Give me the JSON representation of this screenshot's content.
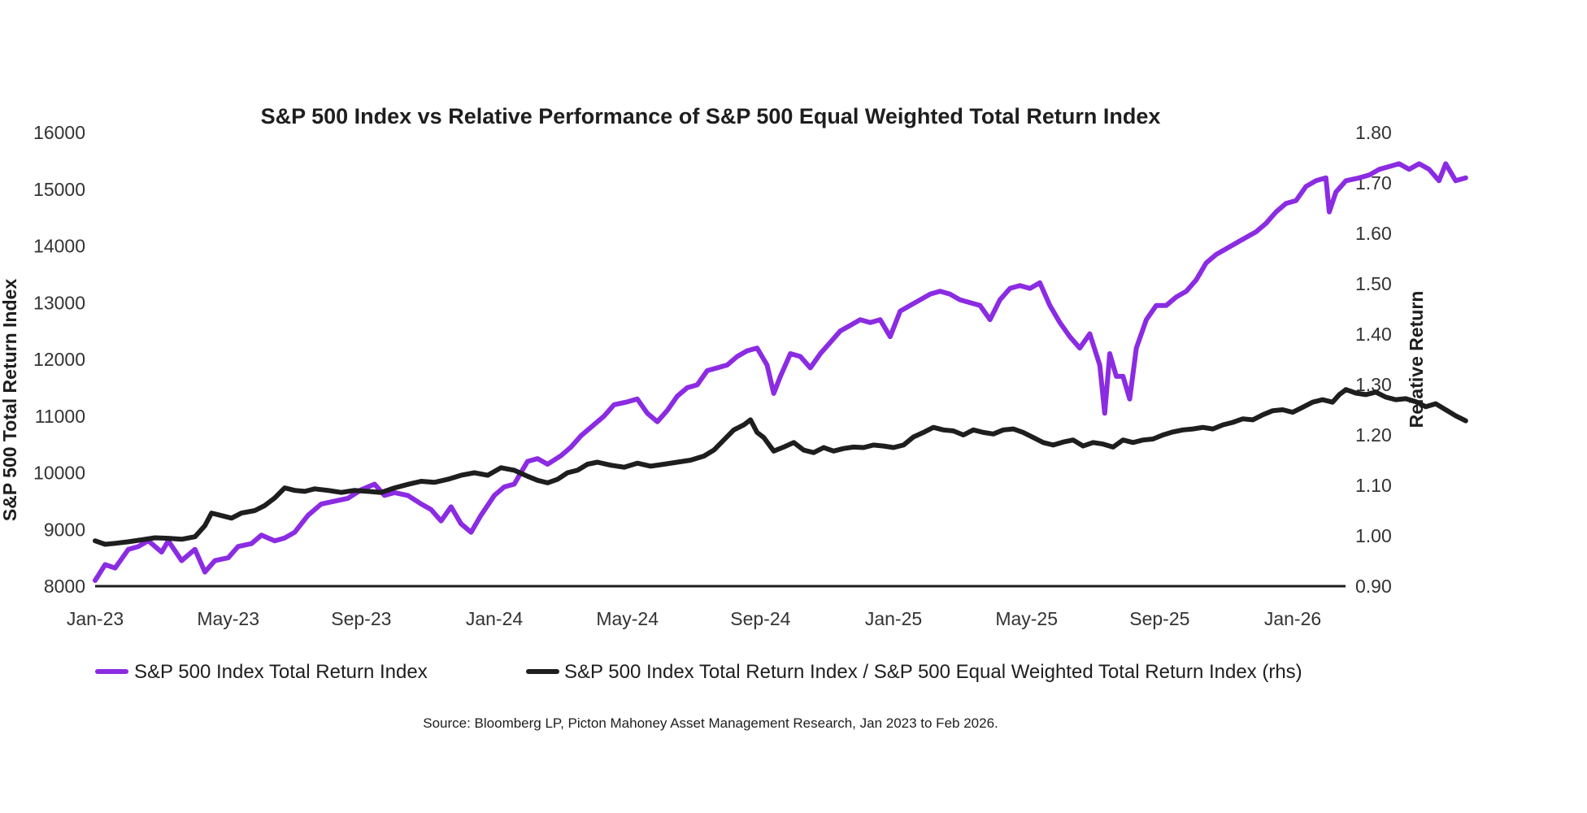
{
  "chart_data": {
    "type": "line",
    "title": "S&P 500 Index vs Relative Performance of S&P 500 Equal Weighted Total Return Index",
    "ylabel": "S&P 500 Total Return Index",
    "y2label": "Relative Return",
    "ylim": [
      8000,
      16000
    ],
    "y2lim": [
      0.9,
      1.8
    ],
    "yticks": [
      "8000",
      "9000",
      "10000",
      "11000",
      "12000",
      "13000",
      "14000",
      "15000",
      "16000"
    ],
    "y2ticks": [
      "0.90",
      "1.00",
      "1.10",
      "1.20",
      "1.30",
      "1.40",
      "1.50",
      "1.60",
      "1.70",
      "1.80"
    ],
    "xticks": [
      "Jan-23",
      "May-23",
      "Sep-23",
      "Jan-24",
      "May-24",
      "Sep-24",
      "Jan-25",
      "May-25",
      "Sep-25",
      "Jan-26"
    ],
    "xrange_months": [
      0,
      37.5
    ],
    "grid": false,
    "legend_position": "bottom",
    "source": "Source: Bloomberg LP, Picton Mahoney Asset Management Research, Jan 2023 to Feb 2026.",
    "series": [
      {
        "name": "S&P 500 Index Total Return Index",
        "axis": "left",
        "color": "#8b2be2",
        "points": [
          [
            0,
            8100
          ],
          [
            0.3,
            8380
          ],
          [
            0.6,
            8320
          ],
          [
            1.0,
            8650
          ],
          [
            1.3,
            8700
          ],
          [
            1.6,
            8800
          ],
          [
            2.0,
            8600
          ],
          [
            2.2,
            8800
          ],
          [
            2.6,
            8450
          ],
          [
            3.0,
            8650
          ],
          [
            3.3,
            8250
          ],
          [
            3.6,
            8450
          ],
          [
            4.0,
            8500
          ],
          [
            4.3,
            8700
          ],
          [
            4.7,
            8750
          ],
          [
            5.0,
            8900
          ],
          [
            5.4,
            8800
          ],
          [
            5.7,
            8850
          ],
          [
            6.0,
            8950
          ],
          [
            6.4,
            9250
          ],
          [
            6.8,
            9450
          ],
          [
            7.2,
            9500
          ],
          [
            7.6,
            9550
          ],
          [
            8.0,
            9700
          ],
          [
            8.4,
            9800
          ],
          [
            8.7,
            9600
          ],
          [
            9.0,
            9650
          ],
          [
            9.4,
            9600
          ],
          [
            9.8,
            9450
          ],
          [
            10.1,
            9350
          ],
          [
            10.4,
            9150
          ],
          [
            10.7,
            9400
          ],
          [
            11.0,
            9100
          ],
          [
            11.3,
            8950
          ],
          [
            11.6,
            9250
          ],
          [
            12.0,
            9600
          ],
          [
            12.3,
            9750
          ],
          [
            12.6,
            9800
          ],
          [
            13.0,
            10200
          ],
          [
            13.3,
            10250
          ],
          [
            13.6,
            10150
          ],
          [
            14.0,
            10300
          ],
          [
            14.3,
            10450
          ],
          [
            14.6,
            10650
          ],
          [
            15.0,
            10850
          ],
          [
            15.3,
            11000
          ],
          [
            15.6,
            11200
          ],
          [
            16.0,
            11250
          ],
          [
            16.3,
            11300
          ],
          [
            16.6,
            11050
          ],
          [
            16.9,
            10900
          ],
          [
            17.2,
            11100
          ],
          [
            17.5,
            11350
          ],
          [
            17.8,
            11500
          ],
          [
            18.1,
            11550
          ],
          [
            18.4,
            11800
          ],
          [
            18.7,
            11850
          ],
          [
            19.0,
            11900
          ],
          [
            19.3,
            12050
          ],
          [
            19.6,
            12150
          ],
          [
            19.9,
            12200
          ],
          [
            20.2,
            11900
          ],
          [
            20.4,
            11400
          ],
          [
            20.6,
            11700
          ],
          [
            20.9,
            12100
          ],
          [
            21.2,
            12050
          ],
          [
            21.5,
            11850
          ],
          [
            21.8,
            12100
          ],
          [
            22.1,
            12300
          ],
          [
            22.4,
            12500
          ],
          [
            22.7,
            12600
          ],
          [
            23.0,
            12700
          ],
          [
            23.3,
            12650
          ],
          [
            23.6,
            12700
          ],
          [
            23.9,
            12400
          ],
          [
            24.2,
            12850
          ],
          [
            24.5,
            12950
          ],
          [
            24.8,
            13050
          ],
          [
            25.1,
            13150
          ],
          [
            25.4,
            13200
          ],
          [
            25.7,
            13150
          ],
          [
            26.0,
            13050
          ],
          [
            26.3,
            13000
          ],
          [
            26.6,
            12950
          ],
          [
            26.9,
            12700
          ],
          [
            27.2,
            13050
          ],
          [
            27.5,
            13250
          ],
          [
            27.8,
            13300
          ],
          [
            28.1,
            13250
          ],
          [
            28.4,
            13350
          ],
          [
            28.7,
            12950
          ],
          [
            29.0,
            12650
          ],
          [
            29.3,
            12400
          ],
          [
            29.6,
            12200
          ],
          [
            29.9,
            12450
          ],
          [
            30.2,
            11900
          ],
          [
            30.35,
            11050
          ],
          [
            30.5,
            12100
          ],
          [
            30.7,
            11700
          ],
          [
            30.9,
            11700
          ],
          [
            31.1,
            11300
          ],
          [
            31.3,
            12200
          ],
          [
            31.6,
            12700
          ],
          [
            31.9,
            12950
          ],
          [
            32.2,
            12950
          ],
          [
            32.5,
            13100
          ],
          [
            32.8,
            13200
          ],
          [
            33.1,
            13400
          ],
          [
            33.4,
            13700
          ],
          [
            33.7,
            13850
          ],
          [
            34.0,
            13950
          ],
          [
            34.3,
            14050
          ],
          [
            34.6,
            14150
          ],
          [
            34.9,
            14250
          ],
          [
            35.2,
            14400
          ],
          [
            35.5,
            14600
          ],
          [
            35.8,
            14750
          ],
          [
            36.1,
            14800
          ],
          [
            36.4,
            15050
          ],
          [
            36.7,
            15150
          ],
          [
            37.0,
            15200
          ],
          [
            37.1,
            14600
          ],
          [
            37.3,
            14950
          ],
          [
            37.6,
            15150
          ],
          [
            38.0,
            15200
          ],
          [
            38.3,
            15250
          ],
          [
            38.6,
            15350
          ],
          [
            38.9,
            15400
          ],
          [
            39.2,
            15450
          ],
          [
            39.5,
            15350
          ],
          [
            39.8,
            15450
          ],
          [
            40.1,
            15350
          ],
          [
            40.4,
            15150
          ],
          [
            40.6,
            15450
          ],
          [
            40.9,
            15150
          ],
          [
            41.2,
            15200
          ]
        ]
      },
      {
        "name": "S&P 500 Index Total Return Index / S&P 500 Equal Weighted Total Return Index (rhs)",
        "axis": "right",
        "color": "#1e1e1e",
        "points": [
          [
            0,
            0.99
          ],
          [
            0.3,
            0.983
          ],
          [
            0.6,
            0.985
          ],
          [
            1.0,
            0.988
          ],
          [
            1.4,
            0.992
          ],
          [
            1.8,
            0.996
          ],
          [
            2.2,
            0.995
          ],
          [
            2.6,
            0.993
          ],
          [
            3.0,
            0.998
          ],
          [
            3.3,
            1.02
          ],
          [
            3.5,
            1.045
          ],
          [
            3.8,
            1.04
          ],
          [
            4.1,
            1.035
          ],
          [
            4.4,
            1.045
          ],
          [
            4.8,
            1.05
          ],
          [
            5.1,
            1.06
          ],
          [
            5.4,
            1.075
          ],
          [
            5.7,
            1.095
          ],
          [
            6.0,
            1.09
          ],
          [
            6.3,
            1.088
          ],
          [
            6.6,
            1.093
          ],
          [
            7.0,
            1.09
          ],
          [
            7.4,
            1.086
          ],
          [
            7.8,
            1.09
          ],
          [
            8.2,
            1.088
          ],
          [
            8.6,
            1.086
          ],
          [
            9.0,
            1.095
          ],
          [
            9.4,
            1.102
          ],
          [
            9.8,
            1.108
          ],
          [
            10.2,
            1.106
          ],
          [
            10.6,
            1.112
          ],
          [
            11.0,
            1.12
          ],
          [
            11.4,
            1.125
          ],
          [
            11.8,
            1.12
          ],
          [
            12.2,
            1.135
          ],
          [
            12.6,
            1.13
          ],
          [
            13.0,
            1.118
          ],
          [
            13.3,
            1.11
          ],
          [
            13.6,
            1.105
          ],
          [
            13.9,
            1.112
          ],
          [
            14.2,
            1.125
          ],
          [
            14.5,
            1.13
          ],
          [
            14.8,
            1.142
          ],
          [
            15.1,
            1.146
          ],
          [
            15.5,
            1.14
          ],
          [
            15.9,
            1.136
          ],
          [
            16.3,
            1.144
          ],
          [
            16.7,
            1.138
          ],
          [
            17.1,
            1.142
          ],
          [
            17.5,
            1.146
          ],
          [
            17.9,
            1.15
          ],
          [
            18.3,
            1.158
          ],
          [
            18.6,
            1.17
          ],
          [
            18.9,
            1.19
          ],
          [
            19.2,
            1.21
          ],
          [
            19.5,
            1.22
          ],
          [
            19.7,
            1.23
          ],
          [
            19.9,
            1.205
          ],
          [
            20.1,
            1.195
          ],
          [
            20.4,
            1.168
          ],
          [
            20.7,
            1.176
          ],
          [
            21.0,
            1.185
          ],
          [
            21.3,
            1.17
          ],
          [
            21.6,
            1.165
          ],
          [
            21.9,
            1.175
          ],
          [
            22.2,
            1.168
          ],
          [
            22.5,
            1.173
          ],
          [
            22.8,
            1.176
          ],
          [
            23.1,
            1.175
          ],
          [
            23.4,
            1.18
          ],
          [
            23.7,
            1.178
          ],
          [
            24.0,
            1.175
          ],
          [
            24.3,
            1.18
          ],
          [
            24.6,
            1.196
          ],
          [
            24.9,
            1.205
          ],
          [
            25.2,
            1.215
          ],
          [
            25.5,
            1.21
          ],
          [
            25.8,
            1.208
          ],
          [
            26.1,
            1.2
          ],
          [
            26.4,
            1.21
          ],
          [
            26.7,
            1.205
          ],
          [
            27.0,
            1.202
          ],
          [
            27.3,
            1.21
          ],
          [
            27.6,
            1.212
          ],
          [
            27.9,
            1.205
          ],
          [
            28.2,
            1.195
          ],
          [
            28.5,
            1.185
          ],
          [
            28.8,
            1.18
          ],
          [
            29.1,
            1.186
          ],
          [
            29.4,
            1.19
          ],
          [
            29.7,
            1.178
          ],
          [
            30.0,
            1.185
          ],
          [
            30.3,
            1.182
          ],
          [
            30.6,
            1.176
          ],
          [
            30.9,
            1.19
          ],
          [
            31.2,
            1.185
          ],
          [
            31.5,
            1.19
          ],
          [
            31.8,
            1.192
          ],
          [
            32.1,
            1.2
          ],
          [
            32.4,
            1.206
          ],
          [
            32.7,
            1.21
          ],
          [
            33.0,
            1.212
          ],
          [
            33.3,
            1.215
          ],
          [
            33.6,
            1.212
          ],
          [
            33.9,
            1.22
          ],
          [
            34.2,
            1.225
          ],
          [
            34.5,
            1.232
          ],
          [
            34.8,
            1.23
          ],
          [
            35.1,
            1.24
          ],
          [
            35.4,
            1.248
          ],
          [
            35.7,
            1.25
          ],
          [
            36.0,
            1.245
          ],
          [
            36.3,
            1.255
          ],
          [
            36.6,
            1.265
          ],
          [
            36.9,
            1.27
          ],
          [
            37.2,
            1.265
          ],
          [
            37.4,
            1.28
          ],
          [
            37.6,
            1.29
          ],
          [
            37.9,
            1.283
          ],
          [
            38.2,
            1.28
          ],
          [
            38.5,
            1.285
          ],
          [
            38.8,
            1.275
          ],
          [
            39.1,
            1.27
          ],
          [
            39.4,
            1.272
          ],
          [
            39.7,
            1.266
          ],
          [
            40.0,
            1.256
          ],
          [
            40.3,
            1.262
          ],
          [
            40.6,
            1.25
          ],
          [
            40.9,
            1.238
          ],
          [
            41.2,
            1.228
          ]
        ]
      }
    ]
  }
}
